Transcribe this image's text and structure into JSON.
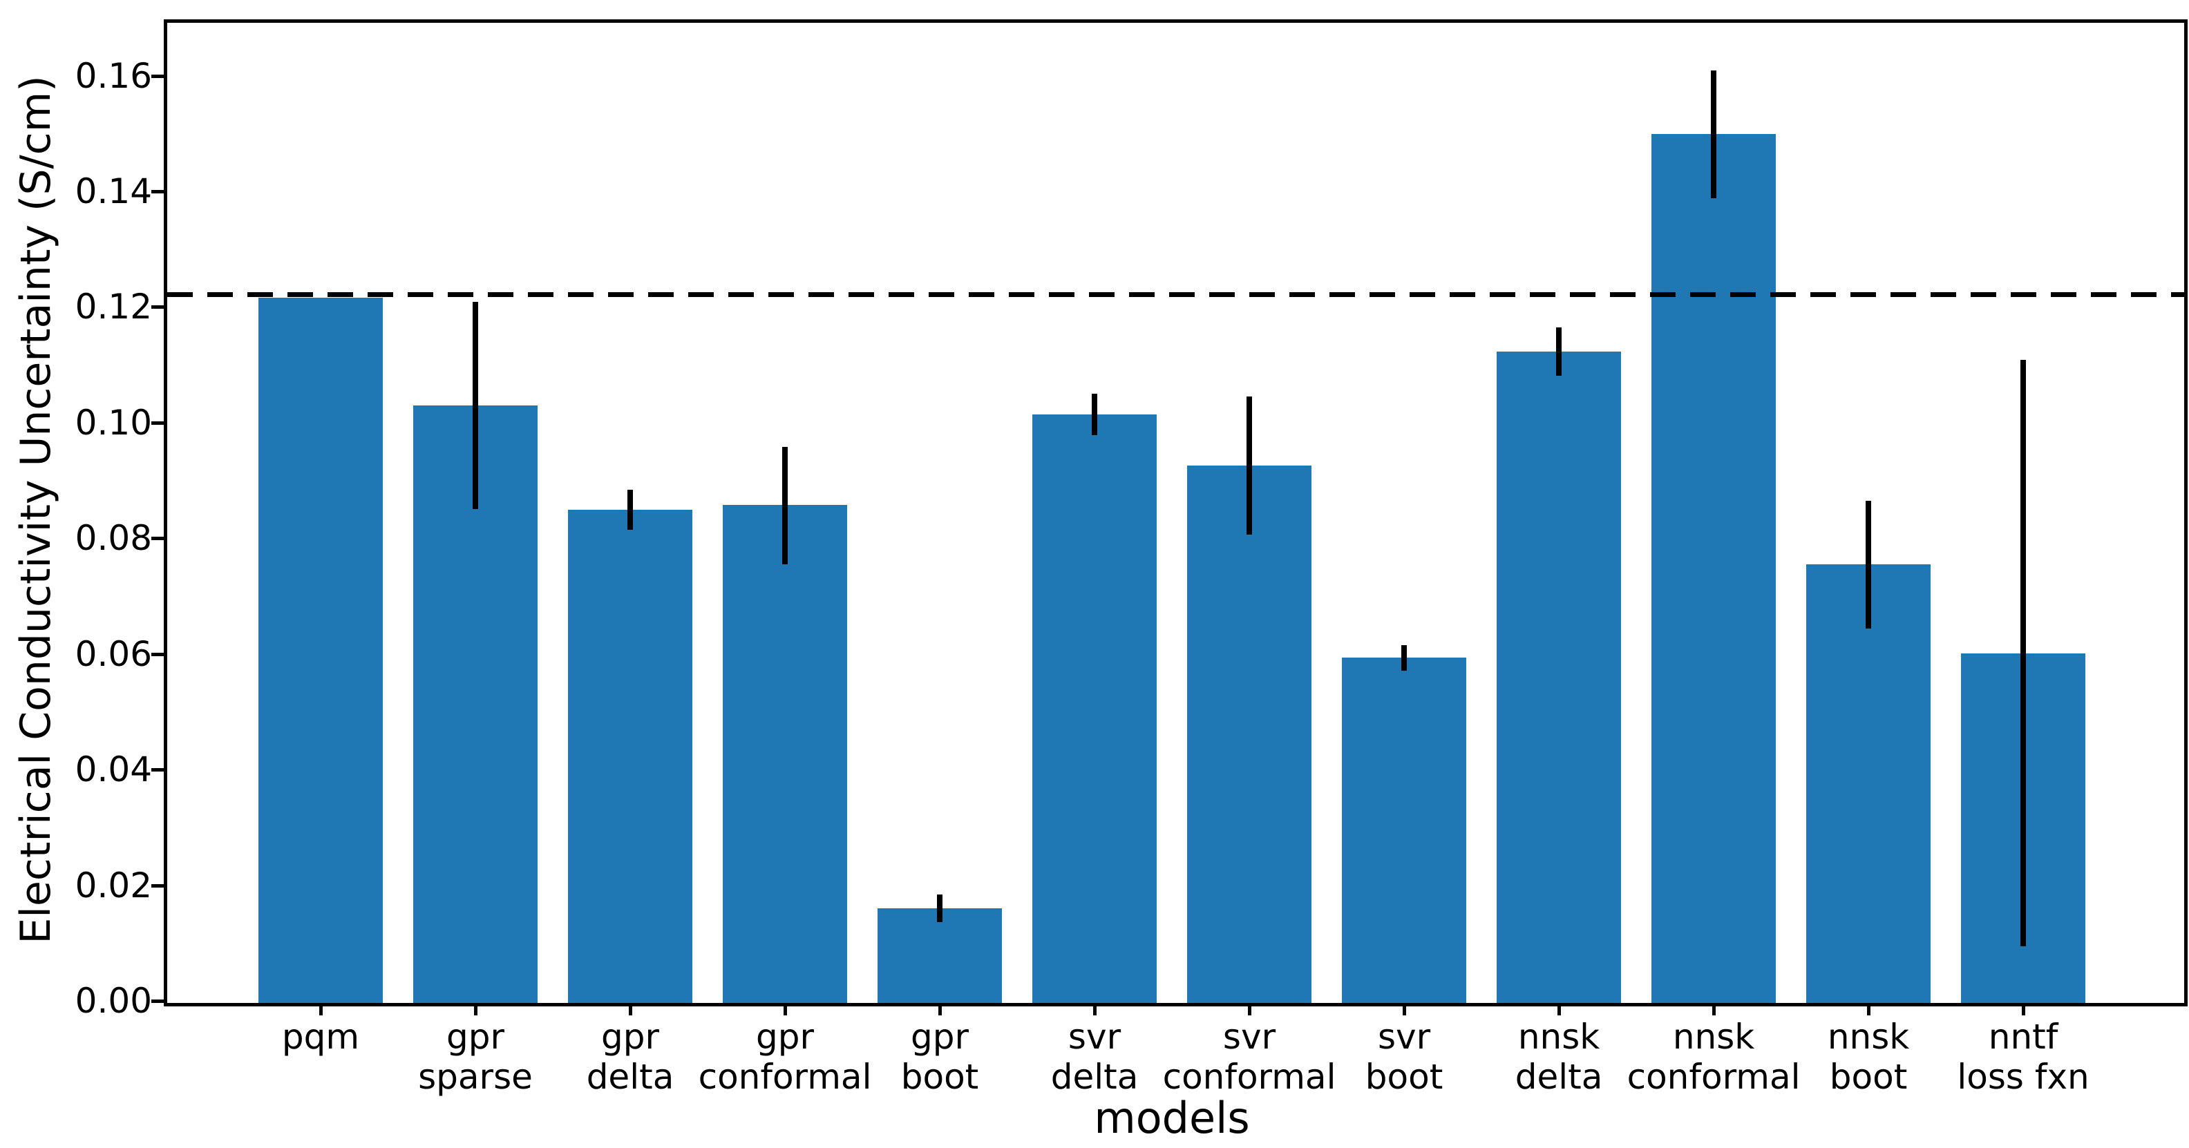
{
  "chart_data": {
    "type": "bar",
    "title": "",
    "xlabel": "models",
    "ylabel": "Electrical Conductivity Uncertainty (S/cm)",
    "categories": [
      "pqm",
      "gpr\nsparse",
      "gpr\ndelta",
      "gpr\nconformal",
      "gpr\nboot",
      "svr\ndelta",
      "svr\nconformal",
      "svr\nboot",
      "nnsk\ndelta",
      "nnsk\nconformal",
      "nnsk\nboot",
      "nntf\nloss fxn"
    ],
    "values": [
      0.122,
      0.1033,
      0.0853,
      0.0861,
      0.0164,
      0.1018,
      0.0929,
      0.0597,
      0.1126,
      0.1503,
      0.0758,
      0.0605
    ],
    "error_low": [
      null,
      0.0854,
      0.0818,
      0.0759,
      0.014,
      0.0982,
      0.081,
      0.0575,
      0.1085,
      0.1392,
      0.0648,
      0.0098
    ],
    "error_high": [
      null,
      0.1213,
      0.0887,
      0.0961,
      0.0188,
      0.1054,
      0.1049,
      0.0619,
      0.1168,
      0.1612,
      0.0869,
      0.1112
    ],
    "reference_line": 0.1225,
    "reference_line_style": "dashed",
    "ylim": [
      0,
      0.1695
    ],
    "yticks": [
      0.0,
      0.02,
      0.04,
      0.06,
      0.08,
      0.1,
      0.12,
      0.14,
      0.16
    ],
    "ytick_labels": [
      "0.00",
      "0.02",
      "0.04",
      "0.06",
      "0.08",
      "0.10",
      "0.12",
      "0.14",
      "0.16"
    ],
    "grid": false,
    "legend": null,
    "bar_color": "#1f77b4",
    "error_color": "#000000",
    "axis_color": "#000000"
  }
}
